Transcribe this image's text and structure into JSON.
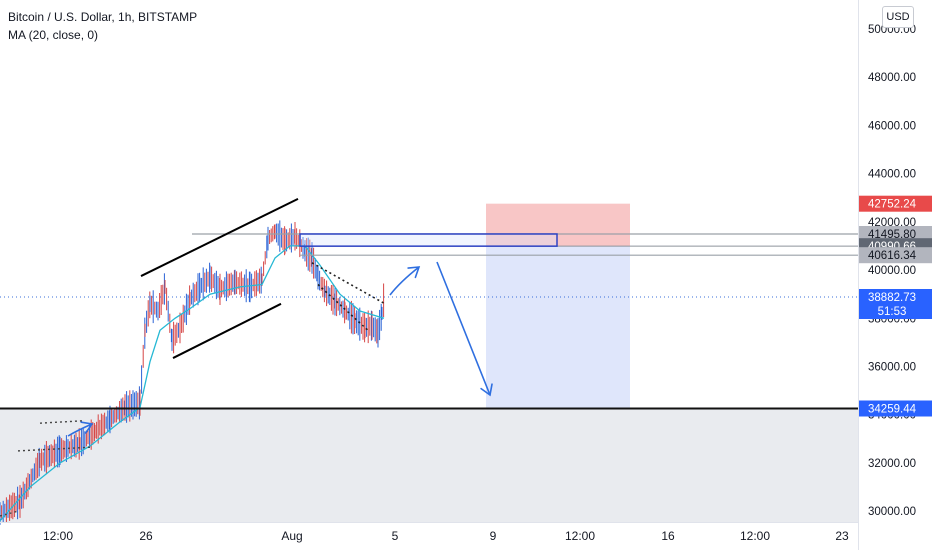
{
  "header": {
    "symbol_title": "Bitcoin / U.S. Dollar, 1h, BITSTAMP",
    "indicator": "MA (20, close, 0)",
    "currency": "USD"
  },
  "chart_data": {
    "type": "candlestick",
    "title": "Bitcoin / U.S. Dollar, 1h, BITSTAMP",
    "indicator": "MA (20, close, 0)",
    "y_axis_ticks": [
      30000,
      32000,
      34000,
      36000,
      38000,
      40000,
      42000,
      44000,
      46000,
      48000,
      50000
    ],
    "y_axis_tick_labels": [
      "30000.00",
      "32000.00",
      "34000.00",
      "36000.00",
      "38000.00",
      "40000.00",
      "42000.00",
      "44000.00",
      "46000.00",
      "48000.00",
      "50000.00"
    ],
    "ylim": [
      29550,
      51200
    ],
    "x_axis_labels": [
      "12:00",
      "26",
      "Aug",
      "5",
      "9",
      "12:00",
      "16",
      "12:00",
      "23"
    ],
    "price_labels": {
      "stop": "42752.24",
      "level_high": "41495.80",
      "entry": "40990.66",
      "level_low": "40616.34",
      "current": "38882.73",
      "countdown": "51:53",
      "support": "34259.44"
    },
    "levels": {
      "stop": 42752.24,
      "level_high": 41495.8,
      "entry": 40990.66,
      "level_low": 40616.34,
      "current": 38882.73,
      "support": 34259.44
    },
    "price_path": [
      [
        0,
        29900
      ],
      [
        20,
        30400
      ],
      [
        40,
        32100
      ],
      [
        60,
        32500
      ],
      [
        80,
        32800
      ],
      [
        95,
        33300
      ],
      [
        110,
        33800
      ],
      [
        125,
        34300
      ],
      [
        140,
        34500
      ],
      [
        145,
        37500
      ],
      [
        150,
        38600
      ],
      [
        158,
        38300
      ],
      [
        165,
        39300
      ],
      [
        172,
        37100
      ],
      [
        180,
        37600
      ],
      [
        190,
        38800
      ],
      [
        200,
        39300
      ],
      [
        210,
        39700
      ],
      [
        220,
        39200
      ],
      [
        235,
        39500
      ],
      [
        250,
        39300
      ],
      [
        262,
        39600
      ],
      [
        268,
        41300
      ],
      [
        275,
        41600
      ],
      [
        285,
        41200
      ],
      [
        295,
        41400
      ],
      [
        305,
        40800
      ],
      [
        312,
        40500
      ],
      [
        318,
        39700
      ],
      [
        325,
        39100
      ],
      [
        335,
        38700
      ],
      [
        345,
        38300
      ],
      [
        355,
        37900
      ],
      [
        365,
        37600
      ],
      [
        372,
        37700
      ],
      [
        378,
        37400
      ],
      [
        382,
        38200
      ],
      [
        384,
        38880
      ]
    ],
    "ma_path": [
      [
        0,
        29600
      ],
      [
        30,
        31000
      ],
      [
        60,
        32000
      ],
      [
        90,
        32700
      ],
      [
        120,
        33700
      ],
      [
        140,
        34300
      ],
      [
        150,
        36200
      ],
      [
        160,
        37500
      ],
      [
        175,
        38000
      ],
      [
        190,
        38400
      ],
      [
        210,
        39000
      ],
      [
        240,
        39300
      ],
      [
        262,
        39400
      ],
      [
        275,
        40500
      ],
      [
        290,
        41000
      ],
      [
        305,
        41000
      ],
      [
        320,
        40200
      ],
      [
        340,
        39000
      ],
      [
        360,
        38300
      ],
      [
        384,
        38000
      ]
    ],
    "position": {
      "x_start": 486,
      "x_end": 630,
      "entry": 40990.66,
      "stop": 42752.24,
      "target": 34259.44
    },
    "supply_zone": {
      "x_start": 300,
      "x_end": 557,
      "top": 41495.8,
      "bottom": 40990.66
    }
  }
}
